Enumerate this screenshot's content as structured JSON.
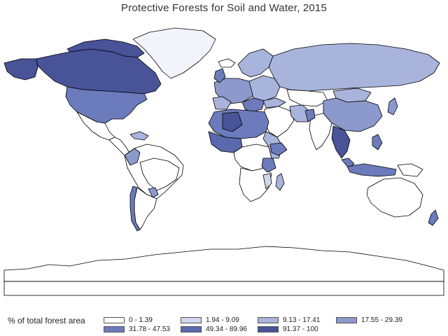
{
  "title": "Protective Forests for Soil and Water, 2015",
  "legend": {
    "label": "% of total forest area",
    "classes": [
      {
        "range": "0 - 1.39",
        "color": "#ffffff"
      },
      {
        "range": "1.94 - 9.09",
        "color": "#d0d6ec"
      },
      {
        "range": "9.13 - 17.41",
        "color": "#a9b4dc"
      },
      {
        "range": "17.55 - 29.39",
        "color": "#8c99cc"
      },
      {
        "range": "31.78 - 47.53",
        "color": "#6c7bbb"
      },
      {
        "range": "49.34 - 89.96",
        "color": "#5a68ad"
      },
      {
        "range": "91.37 - 100",
        "color": "#485398"
      }
    ]
  },
  "colors": {
    "ocean": "#ffffff",
    "border": "#000000",
    "greenland": "#f1f5fb"
  }
}
